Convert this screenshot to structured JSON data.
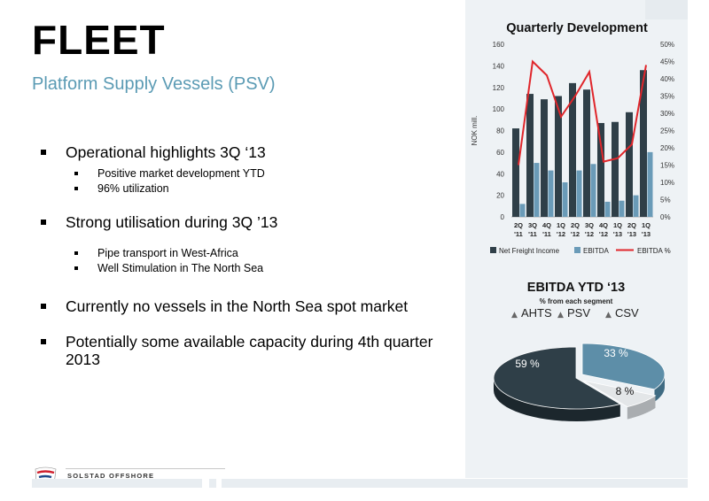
{
  "slide": {
    "title": "FLEET",
    "subtitle": "Platform Supply Vessels (PSV)",
    "bullets": [
      {
        "text": "Operational highlights 3Q ‘13",
        "subs": [
          "Positive market development YTD",
          "96% utilization"
        ]
      },
      {
        "text": "Strong utilisation during 3Q ’13",
        "subs": [
          "Pipe transport in West-Africa",
          "Well Stimulation in The North Sea"
        ]
      },
      {
        "text": "Currently no vessels in the North Sea spot market",
        "subs": []
      },
      {
        "text": "Potentially some available capacity during 4th quarter 2013",
        "subs": []
      }
    ]
  },
  "logo": {
    "text": "SOLSTAD OFFSHORE",
    "colors": {
      "red": "#d0202e",
      "blue": "#1f4a8a"
    }
  },
  "chart_data": [
    {
      "type": "bar",
      "title": "Quarterly Development",
      "ylabel": "NOK mill.",
      "ylim": [
        0,
        160
      ],
      "yticks": [
        0,
        20,
        40,
        60,
        80,
        100,
        120,
        140,
        160
      ],
      "y2lim": [
        0,
        50
      ],
      "y2ticks": [
        "0%",
        "5%",
        "10%",
        "15%",
        "20%",
        "25%",
        "30%",
        "35%",
        "40%",
        "45%",
        "50%"
      ],
      "categories": [
        [
          "2Q",
          "'11"
        ],
        [
          "3Q",
          "'11"
        ],
        [
          "4Q",
          "'11"
        ],
        [
          "1Q",
          "'12"
        ],
        [
          "2Q",
          "'12"
        ],
        [
          "3Q",
          "'12"
        ],
        [
          "4Q",
          "'12"
        ],
        [
          "1Q",
          "'13"
        ],
        [
          "2Q",
          "'13"
        ],
        [
          "1Q",
          "'13"
        ]
      ],
      "series": [
        {
          "name": "Net Freight Income",
          "kind": "bar",
          "color": "#2f3f48",
          "values": [
            82,
            114,
            109,
            112,
            124,
            118,
            87,
            88,
            97,
            136
          ]
        },
        {
          "name": "EBITDA",
          "kind": "bar",
          "color": "#6a9bb8",
          "values": [
            12,
            50,
            43,
            32,
            43,
            49,
            14,
            15,
            20,
            60
          ]
        },
        {
          "name": "EBITDA %",
          "kind": "line",
          "axis": "right",
          "color": "#e0262b",
          "values": [
            15,
            45,
            41,
            29,
            35,
            42,
            16,
            17,
            21,
            44
          ]
        }
      ],
      "legend": "bottom"
    },
    {
      "type": "pie",
      "title": "EBITDA YTD ‘13",
      "subtitle": "% from each segment",
      "legend": "top",
      "slices": [
        {
          "name": "AHTS",
          "value": 33,
          "label": "33 %",
          "color": "#5d8ea8"
        },
        {
          "name": "PSV",
          "value": 8,
          "label": "8 %",
          "color": "#e3e6e8"
        },
        {
          "name": "CSV",
          "value": 59,
          "label": "59 %",
          "color": "#2f3f48"
        }
      ]
    }
  ]
}
